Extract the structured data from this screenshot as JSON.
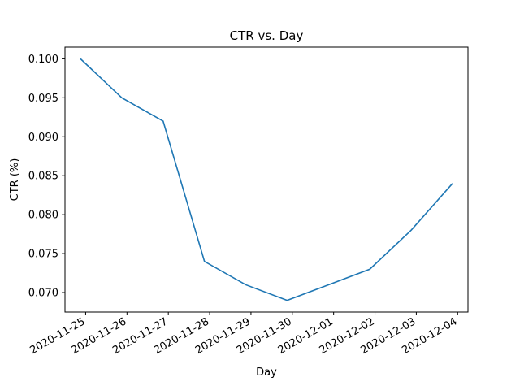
{
  "chart_data": {
    "type": "line",
    "title": "CTR vs. Day",
    "xlabel": "Day",
    "ylabel": "CTR (%)",
    "x": [
      "2020-11-24T21:00",
      "2020-11-25T21:00",
      "2020-11-26T21:00",
      "2020-11-27T21:00",
      "2020-11-28T21:00",
      "2020-11-29T21:00",
      "2020-11-30T21:00",
      "2020-12-01T21:00",
      "2020-12-02T21:00",
      "2020-12-03T21:00"
    ],
    "series": [
      {
        "values": [
          0.1,
          0.095,
          0.092,
          0.074,
          0.071,
          0.069,
          0.071,
          0.073,
          0.078,
          0.084
        ],
        "color": "#1f77b4"
      }
    ],
    "xticks": [
      "2020-11-25",
      "2020-11-26",
      "2020-11-27",
      "2020-11-28",
      "2020-11-29",
      "2020-11-30",
      "2020-12-01",
      "2020-12-02",
      "2020-12-03",
      "2020-12-04"
    ],
    "yticks": [
      "0.070",
      "0.075",
      "0.080",
      "0.085",
      "0.090",
      "0.095",
      "0.100"
    ],
    "xlim": [
      "2020-11-24T12:00",
      "2020-12-04T06:00"
    ],
    "ylim": [
      0.0675,
      0.1015
    ],
    "grid": false,
    "legend": "none"
  }
}
